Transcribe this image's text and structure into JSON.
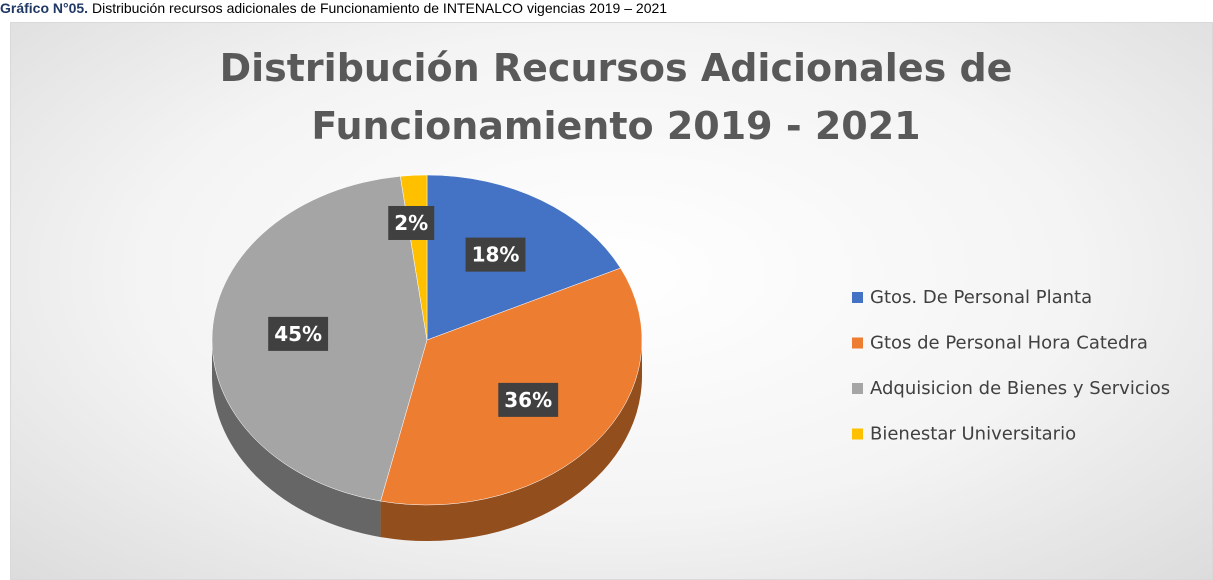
{
  "caption": {
    "label": "Gráfico N°05.",
    "text": "Distribución recursos adicionales de Funcionamiento de INTENALCO vigencias 2019 – 2021"
  },
  "chart_data": {
    "type": "pie",
    "title": "Distribución Recursos Adicionales de Funcionamiento 2019 - 2021",
    "categories": [
      "Gtos. De Personal Planta",
      "Gtos de Personal Hora Catedra",
      "Adquisicion de Bienes y Servicios",
      "Bienestar Universitario"
    ],
    "values": [
      18,
      36,
      45,
      2
    ],
    "value_labels": [
      "18%",
      "36%",
      "45%",
      "2%"
    ],
    "colors": [
      "#4472c4",
      "#ed7d31",
      "#a5a5a5",
      "#ffc000"
    ],
    "legend": "right"
  }
}
